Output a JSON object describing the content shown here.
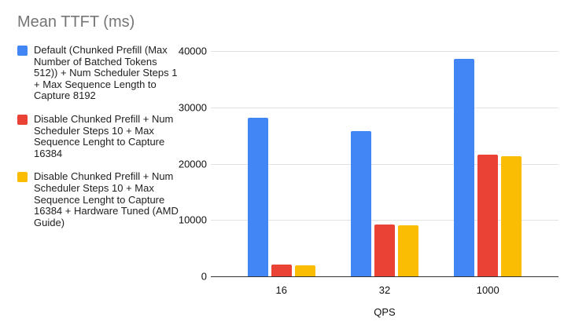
{
  "title": "Mean TTFT (ms)",
  "chart_data": {
    "type": "bar",
    "title": "Mean TTFT (ms)",
    "categories": [
      "16",
      "32",
      "1000"
    ],
    "series": [
      {
        "name": "Default (Chunked Prefill (Max Number of Batched Tokens 512)) + Num Scheduler Steps 1 + Max Sequence Length to Capture 8192",
        "color": "#4285F4",
        "values": [
          28300,
          25900,
          38800
        ]
      },
      {
        "name": "Disable Chunked Prefill + Num Scheduler Steps 10 + Max Sequence Lenght to Capture 16384",
        "color": "#EA4335",
        "values": [
          2200,
          9400,
          21800
        ]
      },
      {
        "name": "Disable Chunked Prefill + Num Scheduler Steps 10 + Max Sequence Lenght to Capture 16384 + Hardware Tuned (AMD Guide)",
        "color": "#FBBC04",
        "values": [
          2100,
          9200,
          21400
        ]
      }
    ],
    "xlabel": "QPS",
    "ylabel": "",
    "ylim": [
      0,
      40000
    ],
    "yticks": [
      0,
      10000,
      20000,
      30000,
      40000
    ],
    "grid": true,
    "legend_position": "left",
    "background": "#ffffff",
    "title_color": "#757575",
    "gridline_color": "#e3e3e3",
    "axis_text_color": "#111111"
  }
}
